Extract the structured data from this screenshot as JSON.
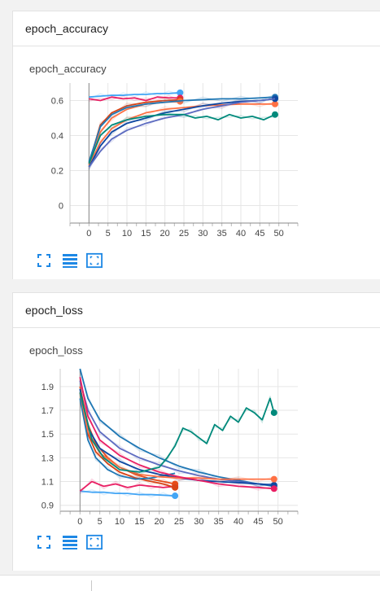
{
  "sections": [
    {
      "header": "epoch_accuracy",
      "card_title": "epoch_accuracy"
    },
    {
      "header": "epoch_loss",
      "card_title": "epoch_loss"
    }
  ],
  "colors": [
    "#1f77b4",
    "#e64a19",
    "#e91e63",
    "#00897b",
    "#42a5f5",
    "#ff7043",
    "#1565c0",
    "#d84315",
    "#0d47a1",
    "#ef6c00",
    "#3949ab",
    "#5c6bc0"
  ],
  "icons": [
    "fit-domain-icon",
    "toggle-log-icon",
    "zoom-select-icon"
  ],
  "chart_data": [
    {
      "type": "line",
      "title": "epoch_accuracy",
      "xlim": [
        -5,
        55
      ],
      "ylim": [
        -0.1,
        0.7
      ],
      "xticks": [
        0,
        5,
        10,
        15,
        20,
        25,
        30,
        35,
        40,
        45,
        50
      ],
      "yticks": [
        0,
        0.2,
        0.4,
        0.6
      ],
      "ytick_labels": [
        "0",
        "0.2",
        "0.4",
        "0.6"
      ],
      "grid": true,
      "series": [
        {
          "x": [
            0,
            3,
            6,
            9,
            12,
            15,
            18,
            21,
            24
          ],
          "y": [
            0.62,
            0.625,
            0.63,
            0.63,
            0.635,
            0.635,
            0.64,
            0.64,
            0.645
          ],
          "color": "#42a5f5",
          "end_marker": true
        },
        {
          "x": [
            0,
            3,
            6,
            9,
            12,
            15,
            18,
            21,
            24
          ],
          "y": [
            0.61,
            0.6,
            0.62,
            0.61,
            0.615,
            0.6,
            0.62,
            0.615,
            0.615
          ],
          "color": "#e91e63",
          "end_marker": true
        },
        {
          "x": [
            0,
            3,
            6,
            10,
            15,
            20,
            24
          ],
          "y": [
            0.24,
            0.46,
            0.53,
            0.57,
            0.59,
            0.6,
            0.605
          ],
          "color": "#d84315",
          "end_marker": true
        },
        {
          "x": [
            0,
            3,
            6,
            10,
            15,
            20,
            24
          ],
          "y": [
            0.23,
            0.42,
            0.5,
            0.55,
            0.58,
            0.59,
            0.595
          ],
          "color": "#ff7043",
          "end_marker": true
        },
        {
          "x": [
            0,
            3,
            6,
            10,
            15,
            20,
            25,
            30,
            35,
            40,
            45,
            49
          ],
          "y": [
            0.25,
            0.45,
            0.52,
            0.56,
            0.58,
            0.59,
            0.6,
            0.605,
            0.61,
            0.61,
            0.615,
            0.62
          ],
          "color": "#1f77b4",
          "end_marker": true
        },
        {
          "x": [
            0,
            3,
            6,
            10,
            15,
            20,
            25,
            30,
            35,
            40,
            45,
            49
          ],
          "y": [
            0.23,
            0.36,
            0.44,
            0.49,
            0.53,
            0.55,
            0.56,
            0.57,
            0.575,
            0.58,
            0.58,
            0.58
          ],
          "color": "#ff7043",
          "end_marker": true
        },
        {
          "x": [
            0,
            3,
            6,
            10,
            15,
            20,
            25,
            30,
            35,
            40,
            45,
            49
          ],
          "y": [
            0.22,
            0.34,
            0.42,
            0.47,
            0.5,
            0.53,
            0.55,
            0.57,
            0.585,
            0.595,
            0.6,
            0.61
          ],
          "color": "#0d47a1",
          "end_marker": true
        },
        {
          "x": [
            0,
            3,
            6,
            10,
            15,
            20,
            25,
            30,
            35,
            40,
            45,
            49
          ],
          "y": [
            0.22,
            0.31,
            0.38,
            0.43,
            0.47,
            0.5,
            0.52,
            0.55,
            0.57,
            0.59,
            0.6,
            0.61
          ],
          "color": "#5c6bc0",
          "end_marker": false
        },
        {
          "x": [
            0,
            3,
            6,
            10,
            15,
            20,
            25,
            28,
            31,
            34,
            37,
            40,
            43,
            46,
            49
          ],
          "y": [
            0.24,
            0.4,
            0.46,
            0.49,
            0.51,
            0.52,
            0.52,
            0.5,
            0.51,
            0.49,
            0.52,
            0.5,
            0.51,
            0.49,
            0.52
          ],
          "color": "#00897b",
          "end_marker": true
        }
      ]
    },
    {
      "type": "line",
      "title": "epoch_loss",
      "xlim": [
        -5,
        55
      ],
      "ylim": [
        0.85,
        2.05
      ],
      "xticks": [
        0,
        5,
        10,
        15,
        20,
        25,
        30,
        35,
        40,
        45,
        50
      ],
      "yticks": [
        0.9,
        1.1,
        1.3,
        1.5,
        1.7,
        1.9
      ],
      "ytick_labels": [
        "0.9",
        "1.1",
        "1.3",
        "1.5",
        "1.7",
        "1.9"
      ],
      "grid": true,
      "series": [
        {
          "x": [
            0,
            3,
            6,
            9,
            12,
            15,
            18,
            21,
            24
          ],
          "y": [
            1.02,
            1.01,
            1.01,
            1.0,
            1.0,
            0.99,
            0.99,
            0.985,
            0.98
          ],
          "color": "#42a5f5",
          "end_marker": true
        },
        {
          "x": [
            0,
            3,
            6,
            9,
            12,
            15,
            18,
            21,
            24
          ],
          "y": [
            1.02,
            1.1,
            1.06,
            1.08,
            1.05,
            1.07,
            1.06,
            1.05,
            1.06
          ],
          "color": "#e91e63",
          "end_marker": true
        },
        {
          "x": [
            0,
            2,
            4,
            7,
            10,
            14,
            18,
            21,
            24
          ],
          "y": [
            1.9,
            1.58,
            1.42,
            1.3,
            1.22,
            1.16,
            1.12,
            1.1,
            1.08
          ],
          "color": "#e64a19",
          "end_marker": true
        },
        {
          "x": [
            0,
            2,
            4,
            7,
            10,
            14,
            18,
            21,
            24
          ],
          "y": [
            1.85,
            1.5,
            1.35,
            1.25,
            1.18,
            1.13,
            1.1,
            1.08,
            1.05
          ],
          "color": "#d84315",
          "end_marker": true
        },
        {
          "x": [
            0,
            2,
            4,
            7,
            10,
            14,
            18,
            21,
            24
          ],
          "y": [
            1.8,
            1.45,
            1.3,
            1.2,
            1.15,
            1.12,
            1.13,
            1.15,
            1.17
          ],
          "color": "#1f77b4",
          "end_marker": false
        },
        {
          "x": [
            0,
            2,
            5,
            10,
            15,
            20,
            25,
            30,
            35,
            40,
            45,
            49
          ],
          "y": [
            2.05,
            1.8,
            1.62,
            1.48,
            1.38,
            1.3,
            1.23,
            1.18,
            1.14,
            1.11,
            1.08,
            1.06
          ],
          "color": "#1f77b4",
          "end_marker": true
        },
        {
          "x": [
            0,
            2,
            5,
            10,
            15,
            20,
            25,
            30,
            35,
            40,
            45,
            49
          ],
          "y": [
            1.95,
            1.7,
            1.52,
            1.38,
            1.3,
            1.24,
            1.19,
            1.15,
            1.12,
            1.1,
            1.08,
            1.07
          ],
          "color": "#5c6bc0",
          "end_marker": false
        },
        {
          "x": [
            0,
            2,
            5,
            10,
            15,
            20,
            25,
            30,
            35,
            40,
            45,
            49
          ],
          "y": [
            1.88,
            1.55,
            1.38,
            1.27,
            1.2,
            1.16,
            1.13,
            1.11,
            1.1,
            1.09,
            1.08,
            1.07
          ],
          "color": "#0d47a1",
          "end_marker": true
        },
        {
          "x": [
            0,
            2,
            5,
            10,
            15,
            20,
            25,
            30,
            35,
            40,
            45,
            49
          ],
          "y": [
            1.85,
            1.52,
            1.34,
            1.22,
            1.16,
            1.14,
            1.13,
            1.13,
            1.12,
            1.12,
            1.12,
            1.12
          ],
          "color": "#ff7043",
          "end_marker": true
        },
        {
          "x": [
            0,
            2,
            5,
            10,
            15,
            20,
            25,
            30,
            35,
            40,
            45,
            49
          ],
          "y": [
            1.98,
            1.65,
            1.45,
            1.32,
            1.24,
            1.18,
            1.14,
            1.11,
            1.08,
            1.06,
            1.05,
            1.04
          ],
          "color": "#e91e63",
          "end_marker": true
        },
        {
          "x": [
            0,
            3,
            6,
            10,
            15,
            20,
            22,
            24,
            26,
            28,
            30,
            32,
            34,
            36,
            38,
            40,
            42,
            44,
            46,
            48,
            49
          ],
          "y": [
            1.85,
            1.45,
            1.3,
            1.2,
            1.18,
            1.22,
            1.3,
            1.4,
            1.55,
            1.52,
            1.47,
            1.42,
            1.58,
            1.53,
            1.65,
            1.6,
            1.72,
            1.68,
            1.62,
            1.8,
            1.68
          ],
          "color": "#00897b",
          "end_marker": true
        }
      ]
    }
  ]
}
